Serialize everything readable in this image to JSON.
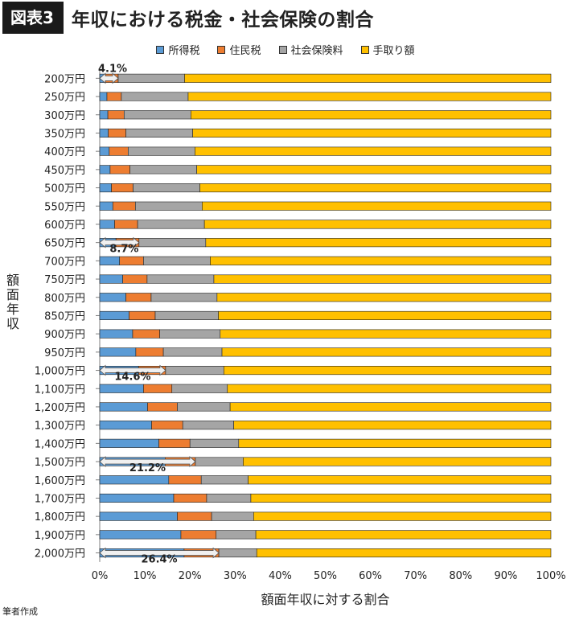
{
  "header": {
    "badge": "図表3",
    "title": "年収における税金・社会保険の割合"
  },
  "footer": {
    "credit": "筆者作成"
  },
  "chart_data": {
    "type": "bar",
    "orientation": "horizontal",
    "stacked": true,
    "xlabel": "額面年収に対する割合",
    "ylabel": "額面年収",
    "xlim": [
      0,
      100
    ],
    "xticks": [
      "0%",
      "10%",
      "20%",
      "30%",
      "40%",
      "50%",
      "60%",
      "70%",
      "80%",
      "90%",
      "100%"
    ],
    "legend_position": "top",
    "categories": [
      "200万円",
      "250万円",
      "300万円",
      "350万円",
      "400万円",
      "450万円",
      "500万円",
      "550万円",
      "600万円",
      "650万円",
      "700万円",
      "750万円",
      "800万円",
      "850万円",
      "900万円",
      "950万円",
      "1,000万円",
      "1,100万円",
      "1,200万円",
      "1,300万円",
      "1,400万円",
      "1,500万円",
      "1,600万円",
      "1,700万円",
      "1,800万円",
      "1,900万円",
      "2,000万円"
    ],
    "series": [
      {
        "name": "所得税",
        "color": "#5b9bd5",
        "values": [
          1.3,
          1.6,
          1.8,
          1.9,
          2.1,
          2.3,
          2.6,
          2.9,
          3.3,
          3.6,
          4.4,
          5.1,
          5.8,
          6.5,
          7.3,
          8.0,
          8.6,
          9.7,
          10.6,
          11.5,
          13.1,
          14.5,
          15.3,
          16.4,
          17.2,
          18.0,
          18.7
        ]
      },
      {
        "name": "住民税",
        "color": "#ed7d31",
        "values": [
          2.8,
          3.2,
          3.6,
          3.9,
          4.2,
          4.4,
          4.8,
          5.0,
          5.1,
          5.1,
          5.3,
          5.4,
          5.6,
          5.8,
          6.0,
          6.1,
          6.0,
          6.3,
          6.6,
          6.9,
          6.9,
          6.7,
          7.2,
          7.3,
          7.6,
          7.8,
          7.7
        ]
      },
      {
        "name": "社会保険料",
        "color": "#a5a5a5",
        "values": [
          14.7,
          14.8,
          14.8,
          14.8,
          14.8,
          14.8,
          14.8,
          14.8,
          14.8,
          14.8,
          14.8,
          14.8,
          14.6,
          14.0,
          13.4,
          13.0,
          12.9,
          12.3,
          11.7,
          11.3,
          10.8,
          10.6,
          10.4,
          9.8,
          9.3,
          8.8,
          8.4
        ]
      },
      {
        "name": "手取り額",
        "color": "#ffc000",
        "values": [
          81.2,
          80.4,
          79.8,
          79.4,
          78.9,
          78.5,
          77.8,
          77.3,
          76.8,
          76.5,
          75.5,
          74.7,
          74.0,
          73.7,
          73.3,
          72.9,
          72.5,
          71.7,
          71.1,
          70.3,
          69.2,
          68.2,
          67.1,
          66.5,
          65.9,
          65.4,
          65.2
        ]
      }
    ],
    "annotations": [
      {
        "label": "4.1%",
        "category": "200万円",
        "value": 4.1
      },
      {
        "label": "8.7%",
        "category": "650万円",
        "value": 8.7
      },
      {
        "label": "14.6%",
        "category": "1,000万円",
        "value": 14.6
      },
      {
        "label": "21.2%",
        "category": "1,500万円",
        "value": 21.2
      },
      {
        "label": "26.4%",
        "category": "2,000万円",
        "value": 26.4
      }
    ]
  }
}
